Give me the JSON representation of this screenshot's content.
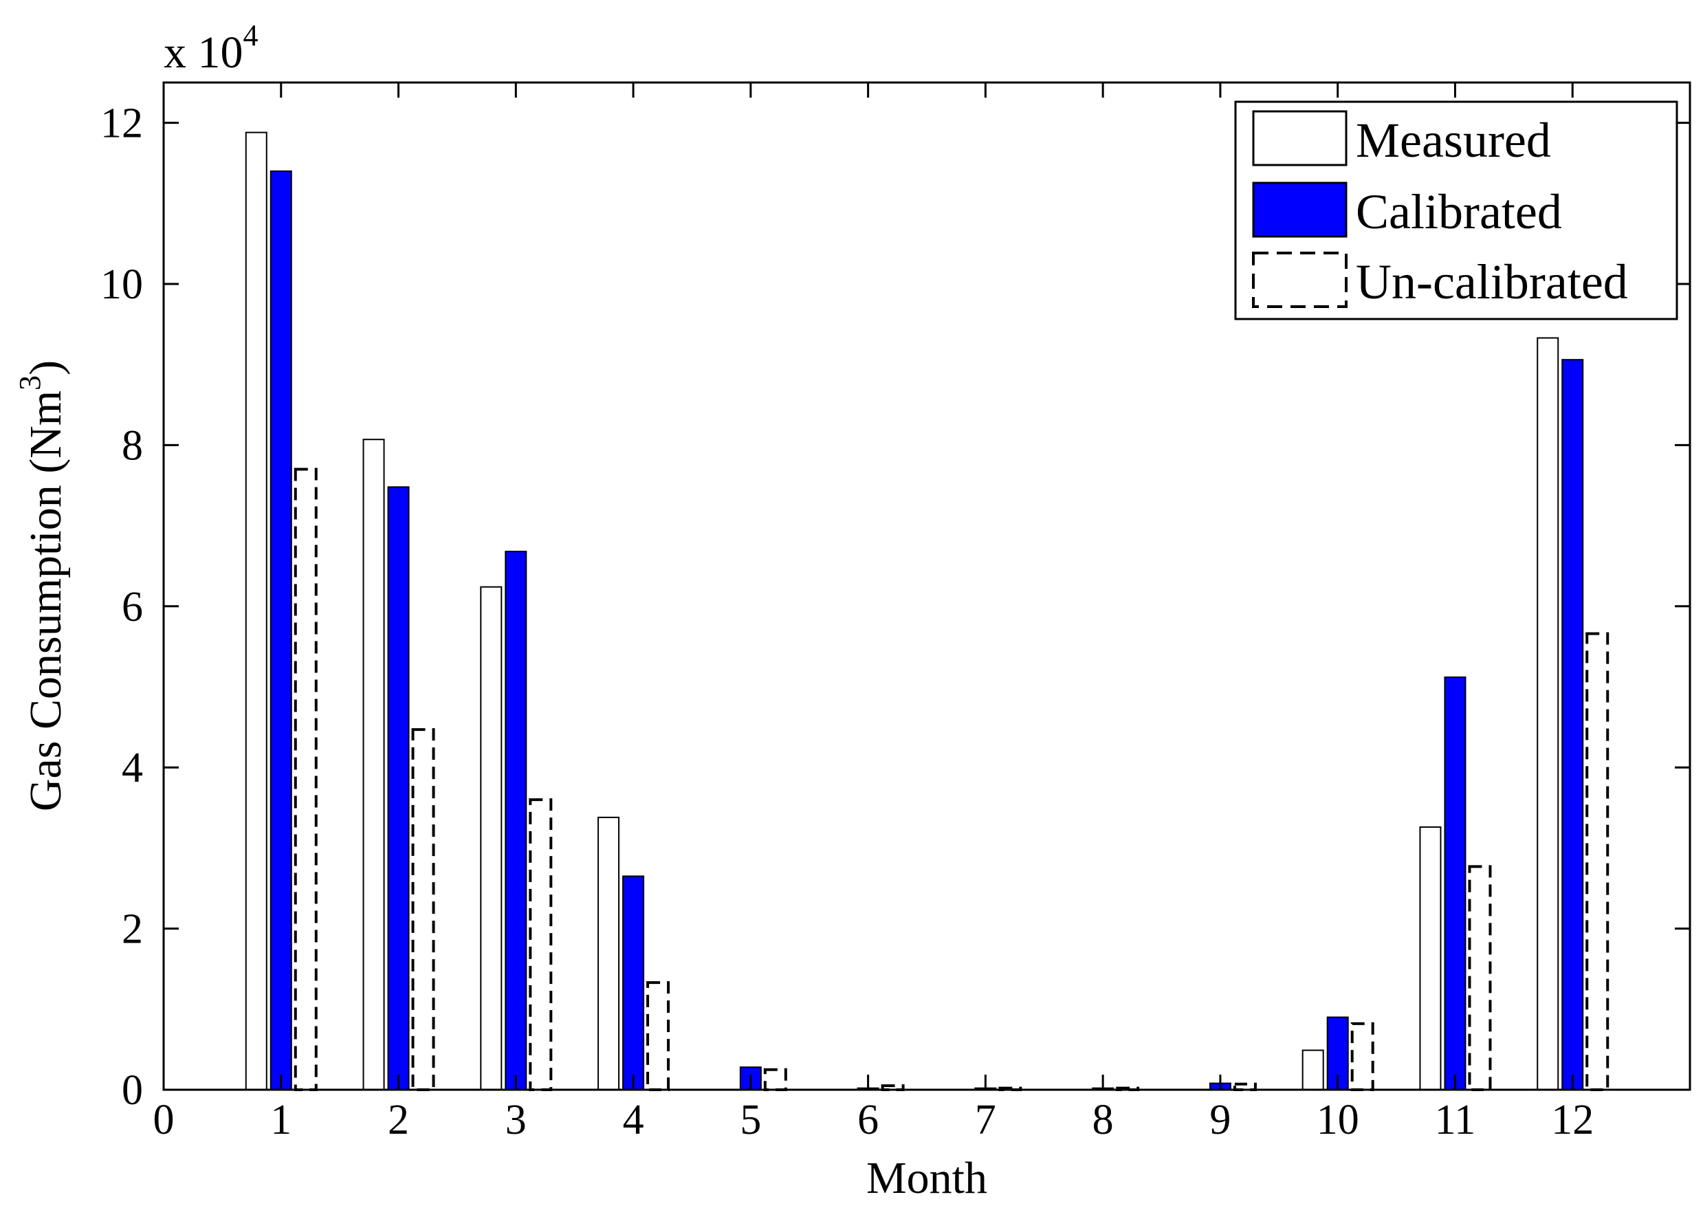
{
  "chart_data": {
    "type": "bar",
    "title": "",
    "xlabel": "Month",
    "ylabel": "Gas Consumption (Nm",
    "ylabel_superscript": "3",
    "ylabel_suffix": ")",
    "y_multiplier_text": "x 10",
    "y_multiplier_exponent": "4",
    "xlim": [
      0,
      13
    ],
    "ylim": [
      0,
      12.5
    ],
    "x_ticks": [
      "0",
      "1",
      "2",
      "3",
      "4",
      "5",
      "6",
      "7",
      "8",
      "9",
      "10",
      "11",
      "12"
    ],
    "y_ticks": [
      "0",
      "2",
      "4",
      "6",
      "8",
      "10",
      "12"
    ],
    "categories": [
      1,
      2,
      3,
      4,
      5,
      6,
      7,
      8,
      9,
      10,
      11,
      12
    ],
    "series": [
      {
        "name": "Measured",
        "style": "white-solid",
        "values": [
          11.88,
          8.07,
          6.24,
          3.38,
          0.0,
          0.0,
          0.0,
          0.0,
          0.0,
          0.49,
          3.26,
          9.33
        ]
      },
      {
        "name": "Calibrated",
        "style": "blue-solid",
        "values": [
          11.4,
          7.48,
          6.68,
          2.65,
          0.28,
          0.02,
          0.02,
          0.02,
          0.08,
          0.9,
          5.12,
          9.06
        ]
      },
      {
        "name": "Un-calibrated",
        "style": "white-dashed",
        "values": [
          7.7,
          4.47,
          3.6,
          1.33,
          0.25,
          0.05,
          0.02,
          0.02,
          0.07,
          0.82,
          2.77,
          5.66
        ]
      }
    ],
    "legend_position": "top-right",
    "grid": false,
    "colors": {
      "calibrated": "#0000ff",
      "measured": "#ffffff",
      "edge": "#000000"
    }
  }
}
